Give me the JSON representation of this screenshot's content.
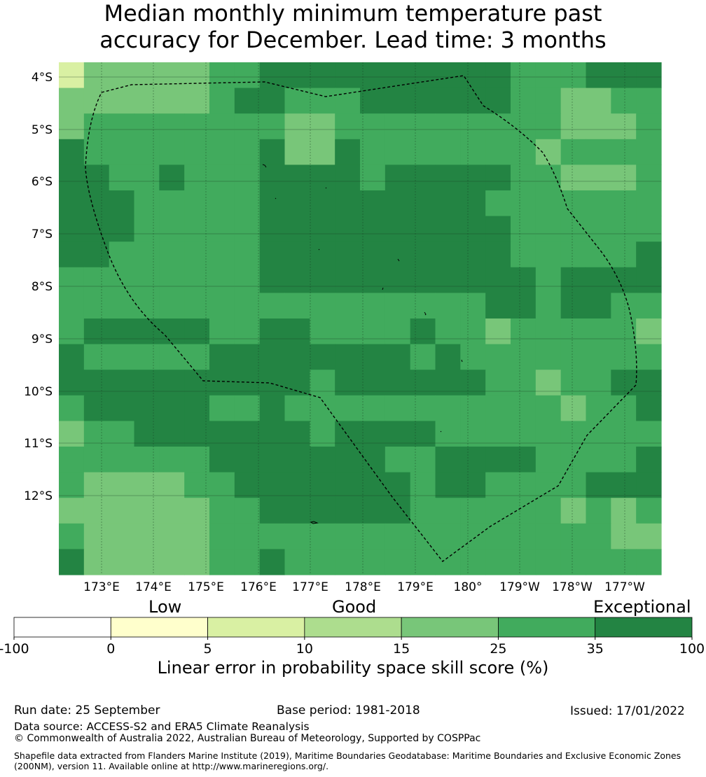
{
  "title": {
    "line1": "Median monthly minimum temperature past",
    "line2": "accuracy for December. Lead time: 3 months"
  },
  "map": {
    "lat_labels": [
      "4°S",
      "5°S",
      "6°S",
      "7°S",
      "8°S",
      "9°S",
      "10°S",
      "11°S",
      "12°S"
    ],
    "lon_labels": [
      "173°E",
      "174°E",
      "175°E",
      "176°E",
      "177°E",
      "178°E",
      "179°E",
      "180°",
      "179°W",
      "178°W",
      "177°W"
    ],
    "skill_grid": [
      "BCCCCCDDEEEEEEEEEEDDDEEE",
      "CCCCCCDEEDDDEEEEEEDDCCDD",
      "CDDDDDDDDCCDDDDDDDDDCCCD",
      "EDDDDDDDECCEDDDDDDDCDDDD",
      "EEDDEDDDEEEEDEEEEEDDCCCD",
      "EEEDDDDDEEEEEEEEEDDDDDDD",
      "EEEDDDDDEEEEEEEEEEDDDDDD",
      "EEDDDDDDEEEEEEEEEEDDDDDE",
      "DDDDDDDDEEEEEEEEEEEDEEEE",
      "DDDDDDDDDDDDDDDDDEEDEEDD",
      "DEEEEEDDEEDDDDEDDCDDDDDC",
      "EDDDDDEEEEEEEEDEDDDDDDDD",
      "EEEEEEEEEEDEEEEEEDDCDDEE",
      "DEEEEEDDEDDDDDDDDDDDCDDE",
      "CDDEEEEEEEDEEEEDDDDDDDDD",
      "DDDDDDEEEEEEEDDEEEEDDDDE",
      "DCCCCDDEEEEEEEDEEDDDDEEE",
      "CCCCCCDDEEEEEEDDDDDDCDCD",
      "DCCCCCDDDDDDDDDDDDDDDDCC",
      "ECCCCCDDEDDDDDDDDDDDDDDD"
    ],
    "level_colors": {
      "B": "#d9f0a3",
      "C": "#78c679",
      "D": "#41ab5d",
      "E": "#238443"
    }
  },
  "colorbar": {
    "headings": [
      "Low",
      "Good",
      "Exceptional"
    ],
    "ticks": [
      "-100",
      "0",
      "5",
      "10",
      "15",
      "25",
      "35",
      "100"
    ],
    "colors": [
      "#ffffff",
      "#ffffcc",
      "#d9f0a3",
      "#addd8e",
      "#78c679",
      "#41ab5d",
      "#238443"
    ],
    "label": "Linear error in probability space skill score (%)"
  },
  "footer": {
    "run_date": "Run date: 25 September",
    "base_period": "Base period: 1981-2018",
    "issued": "Issued: 17/01/2022",
    "data_source": "Data source: ACCESS-S2 and ERA5 Climate Reanalysis",
    "copyright": "© Commonwealth of Australia 2022, Australian Bureau of Meteorology, Supported by COSPPac",
    "shapefile": "Shapefile data extracted from Flanders Marine Institute (2019), Maritime Boundaries Geodatabase: Maritime Boundaries and Exclusive Economic Zones (200NM), version 11. Available online at http://www.marineregions.org/."
  }
}
